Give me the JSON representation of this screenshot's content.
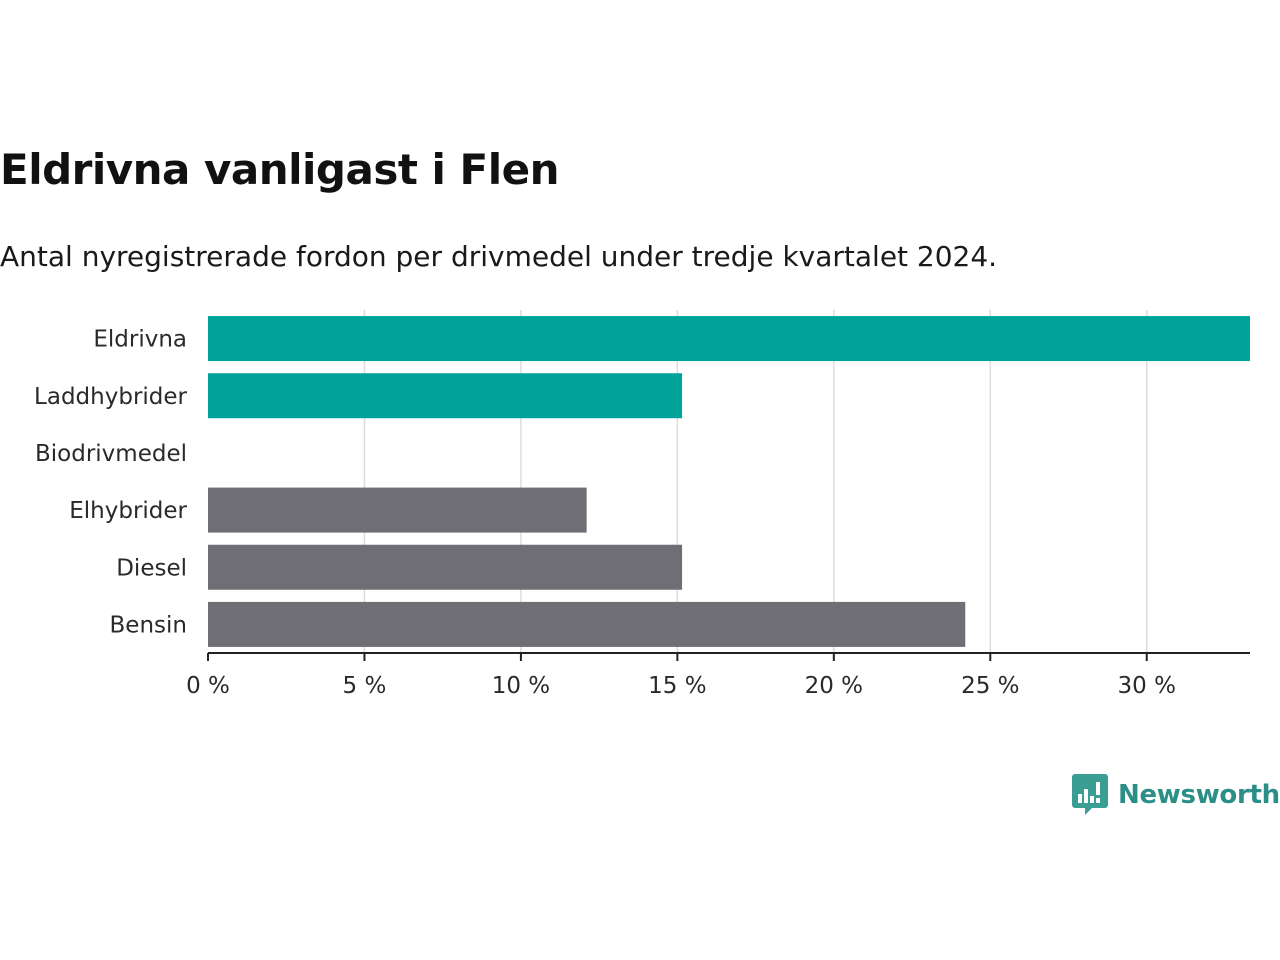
{
  "title": "Eldrivna vanligast i Flen",
  "subtitle": "Antal nyregistrerade fordon per drivmedel under tredje kvartalet 2024.",
  "brand": {
    "name": "Newsworthy",
    "icon": "newsworthy-logo-icon"
  },
  "colors": {
    "highlight": "#00a39a",
    "default": "#6f6e74",
    "grid": "#dcdcdc",
    "brand": "#2b8f88"
  },
  "chart_data": {
    "type": "bar",
    "orientation": "horizontal",
    "categories": [
      "Eldrivna",
      "Laddhybrider",
      "Biodrivmedel",
      "Elhybrider",
      "Diesel",
      "Bensin"
    ],
    "values": [
      33.3,
      15.15,
      0,
      12.1,
      15.15,
      24.2
    ],
    "highlight": [
      true,
      true,
      false,
      false,
      false,
      false
    ],
    "xlim": [
      0,
      33.3
    ],
    "xticks": [
      0,
      5,
      10,
      15,
      20,
      25,
      30
    ],
    "xtick_labels": [
      "0 %",
      "5 %",
      "10 %",
      "15 %",
      "20 %",
      "25 %",
      "30 %"
    ],
    "grid": true,
    "xlabel": "",
    "ylabel": ""
  }
}
